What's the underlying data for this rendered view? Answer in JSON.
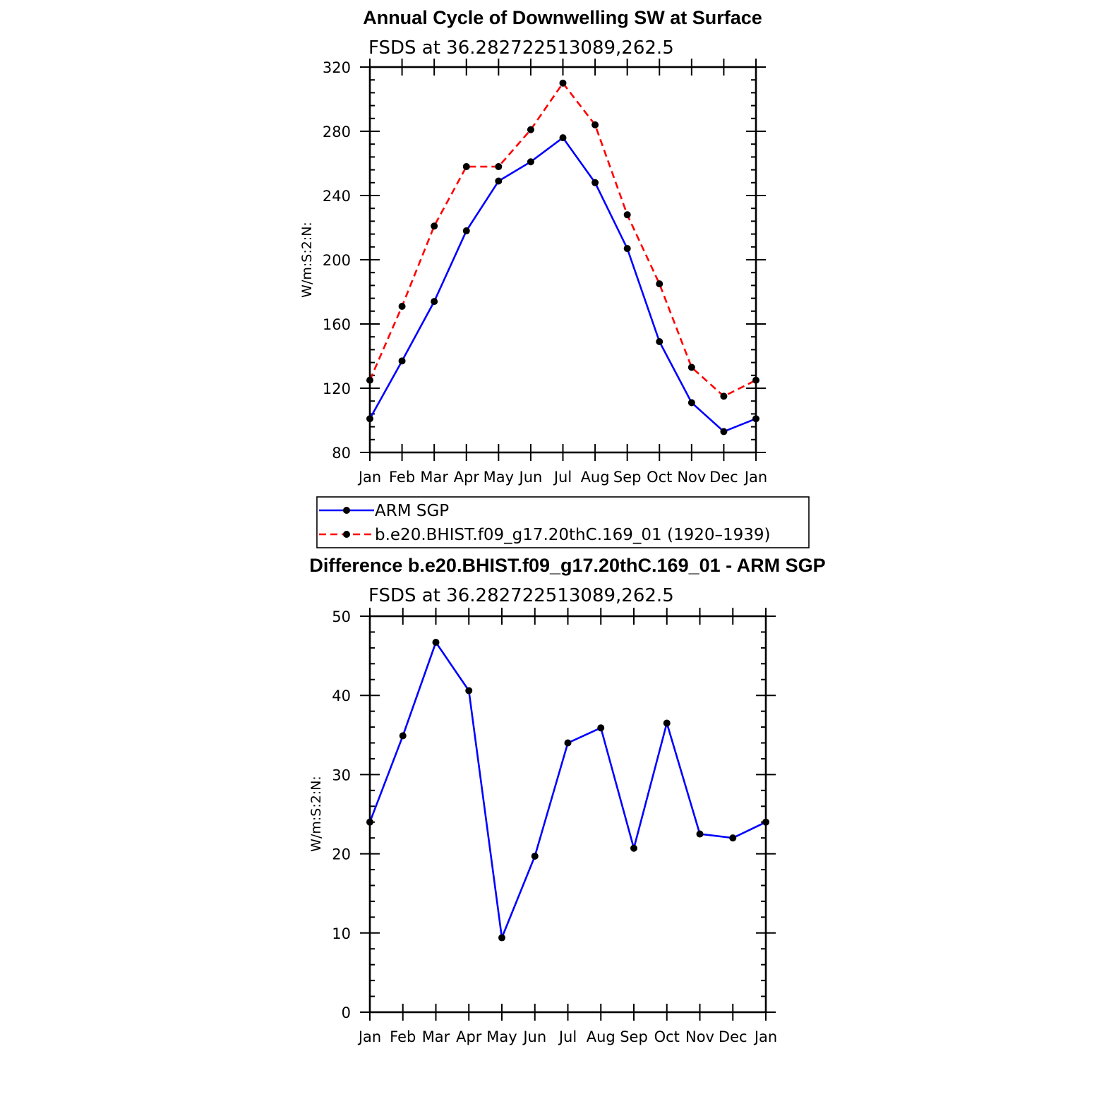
{
  "chart_data": [
    {
      "type": "line",
      "title": "Annual Cycle of Downwelling SW at Surface",
      "subtitle": "FSDS at 36.282722513089,262.5",
      "ylabel": "W/m:S:2:N:",
      "xlabel": "",
      "categories": [
        "Jan",
        "Feb",
        "Mar",
        "Apr",
        "May",
        "Jun",
        "Jul",
        "Aug",
        "Sep",
        "Oct",
        "Nov",
        "Dec",
        "Jan"
      ],
      "ylim": [
        80,
        320
      ],
      "yticks": [
        "80",
        "120",
        "160",
        "200",
        "240",
        "280",
        "320"
      ],
      "series": [
        {
          "name": "ARM SGP",
          "color": "#0000ff",
          "dash": "solid",
          "values": [
            101,
            137,
            174,
            218,
            249,
            261,
            276,
            248,
            207,
            149,
            111,
            93,
            101
          ]
        },
        {
          "name": "b.e20.BHIST.f09_g17.20thC.169_01 (1920–1939)",
          "color": "#ff0000",
          "dash": "dashed",
          "values": [
            125,
            171,
            221,
            258,
            258,
            281,
            310,
            284,
            228,
            185,
            133,
            115,
            125
          ]
        }
      ],
      "legend": "below"
    },
    {
      "type": "line",
      "title": "Difference b.e20.BHIST.f09_g17.20thC.169_01 - ARM SGP",
      "subtitle": "FSDS at 36.282722513089,262.5",
      "ylabel": "W/m:S:2:N:",
      "xlabel": "",
      "categories": [
        "Jan",
        "Feb",
        "Mar",
        "Apr",
        "May",
        "Jun",
        "Jul",
        "Aug",
        "Sep",
        "Oct",
        "Nov",
        "Dec",
        "Jan"
      ],
      "ylim": [
        0,
        50
      ],
      "yticks": [
        "0",
        "10",
        "20",
        "30",
        "40",
        "50"
      ],
      "series": [
        {
          "name": "Difference",
          "color": "#0000ff",
          "dash": "solid",
          "values": [
            24,
            34.9,
            46.7,
            40.6,
            9.4,
            19.7,
            34,
            35.9,
            20.7,
            36.5,
            22.5,
            22,
            24
          ]
        }
      ]
    }
  ]
}
